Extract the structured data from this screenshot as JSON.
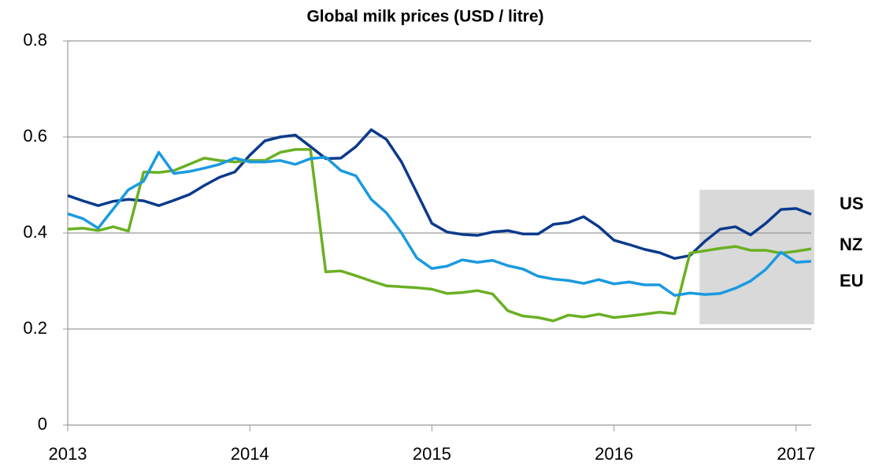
{
  "chart_data": {
    "type": "line",
    "title": "Global milk prices (USD / litre)",
    "x": [
      2013,
      2013.083,
      2013.167,
      2013.25,
      2013.333,
      2013.417,
      2013.5,
      2013.583,
      2013.667,
      2013.75,
      2013.833,
      2013.917,
      2014,
      2014.083,
      2014.167,
      2014.25,
      2014.333,
      2014.417,
      2014.5,
      2014.583,
      2014.667,
      2014.75,
      2014.833,
      2014.917,
      2015,
      2015.083,
      2015.167,
      2015.25,
      2015.333,
      2015.417,
      2015.5,
      2015.583,
      2015.667,
      2015.75,
      2015.833,
      2015.917,
      2016,
      2016.083,
      2016.167,
      2016.25,
      2016.333,
      2016.417,
      2016.5,
      2016.583,
      2016.667,
      2016.75,
      2016.833,
      2016.917,
      2017,
      2017.083
    ],
    "series": [
      {
        "name": "US",
        "color": "#0b3a8c",
        "values": [
          0.478,
          0.467,
          0.457,
          0.466,
          0.47,
          0.467,
          0.457,
          0.468,
          0.48,
          0.499,
          0.516,
          0.527,
          0.562,
          0.592,
          0.6,
          0.604,
          0.58,
          0.555,
          0.556,
          0.58,
          0.615,
          0.595,
          0.548,
          0.484,
          0.42,
          0.402,
          0.397,
          0.395,
          0.402,
          0.405,
          0.398,
          0.398,
          0.418,
          0.422,
          0.434,
          0.413,
          0.385,
          0.376,
          0.366,
          0.359,
          0.347,
          0.353,
          0.383,
          0.408,
          0.413,
          0.396,
          0.42,
          0.449,
          0.451,
          0.439
        ]
      },
      {
        "name": "NZ",
        "color": "#6ab023",
        "values": [
          0.408,
          0.41,
          0.405,
          0.413,
          0.404,
          0.527,
          0.526,
          0.53,
          0.543,
          0.556,
          0.551,
          0.548,
          0.551,
          0.551,
          0.568,
          0.574,
          0.574,
          0.319,
          0.321,
          0.311,
          0.3,
          0.29,
          0.288,
          0.286,
          0.283,
          0.274,
          0.276,
          0.28,
          0.273,
          0.238,
          0.227,
          0.224,
          0.217,
          0.229,
          0.225,
          0.231,
          0.224,
          0.227,
          0.231,
          0.235,
          0.232,
          0.358,
          0.363,
          0.368,
          0.372,
          0.364,
          0.364,
          0.358,
          0.362,
          0.367
        ]
      },
      {
        "name": "EU",
        "color": "#1a9ae0",
        "values": [
          0.44,
          0.43,
          0.41,
          0.45,
          0.49,
          0.508,
          0.568,
          0.524,
          0.528,
          0.535,
          0.543,
          0.556,
          0.548,
          0.548,
          0.551,
          0.543,
          0.555,
          0.558,
          0.53,
          0.519,
          0.47,
          0.442,
          0.4,
          0.348,
          0.326,
          0.331,
          0.344,
          0.339,
          0.343,
          0.332,
          0.325,
          0.31,
          0.304,
          0.301,
          0.295,
          0.303,
          0.294,
          0.298,
          0.292,
          0.292,
          0.27,
          0.275,
          0.272,
          0.274,
          0.285,
          0.3,
          0.324,
          0.36,
          0.339,
          0.341
        ]
      }
    ],
    "xlim": [
      2013,
      2017.083
    ],
    "xticks": [
      2013,
      2014,
      2015,
      2016,
      2017
    ],
    "ylim": [
      0,
      0.8
    ],
    "yticks": [
      0,
      0.2,
      0.4,
      0.6,
      0.8
    ],
    "grid": true,
    "highlight": {
      "color": "#d9d9d9",
      "x": [
        2016.47,
        2017.1
      ],
      "y": [
        0.21,
        0.49
      ]
    }
  }
}
